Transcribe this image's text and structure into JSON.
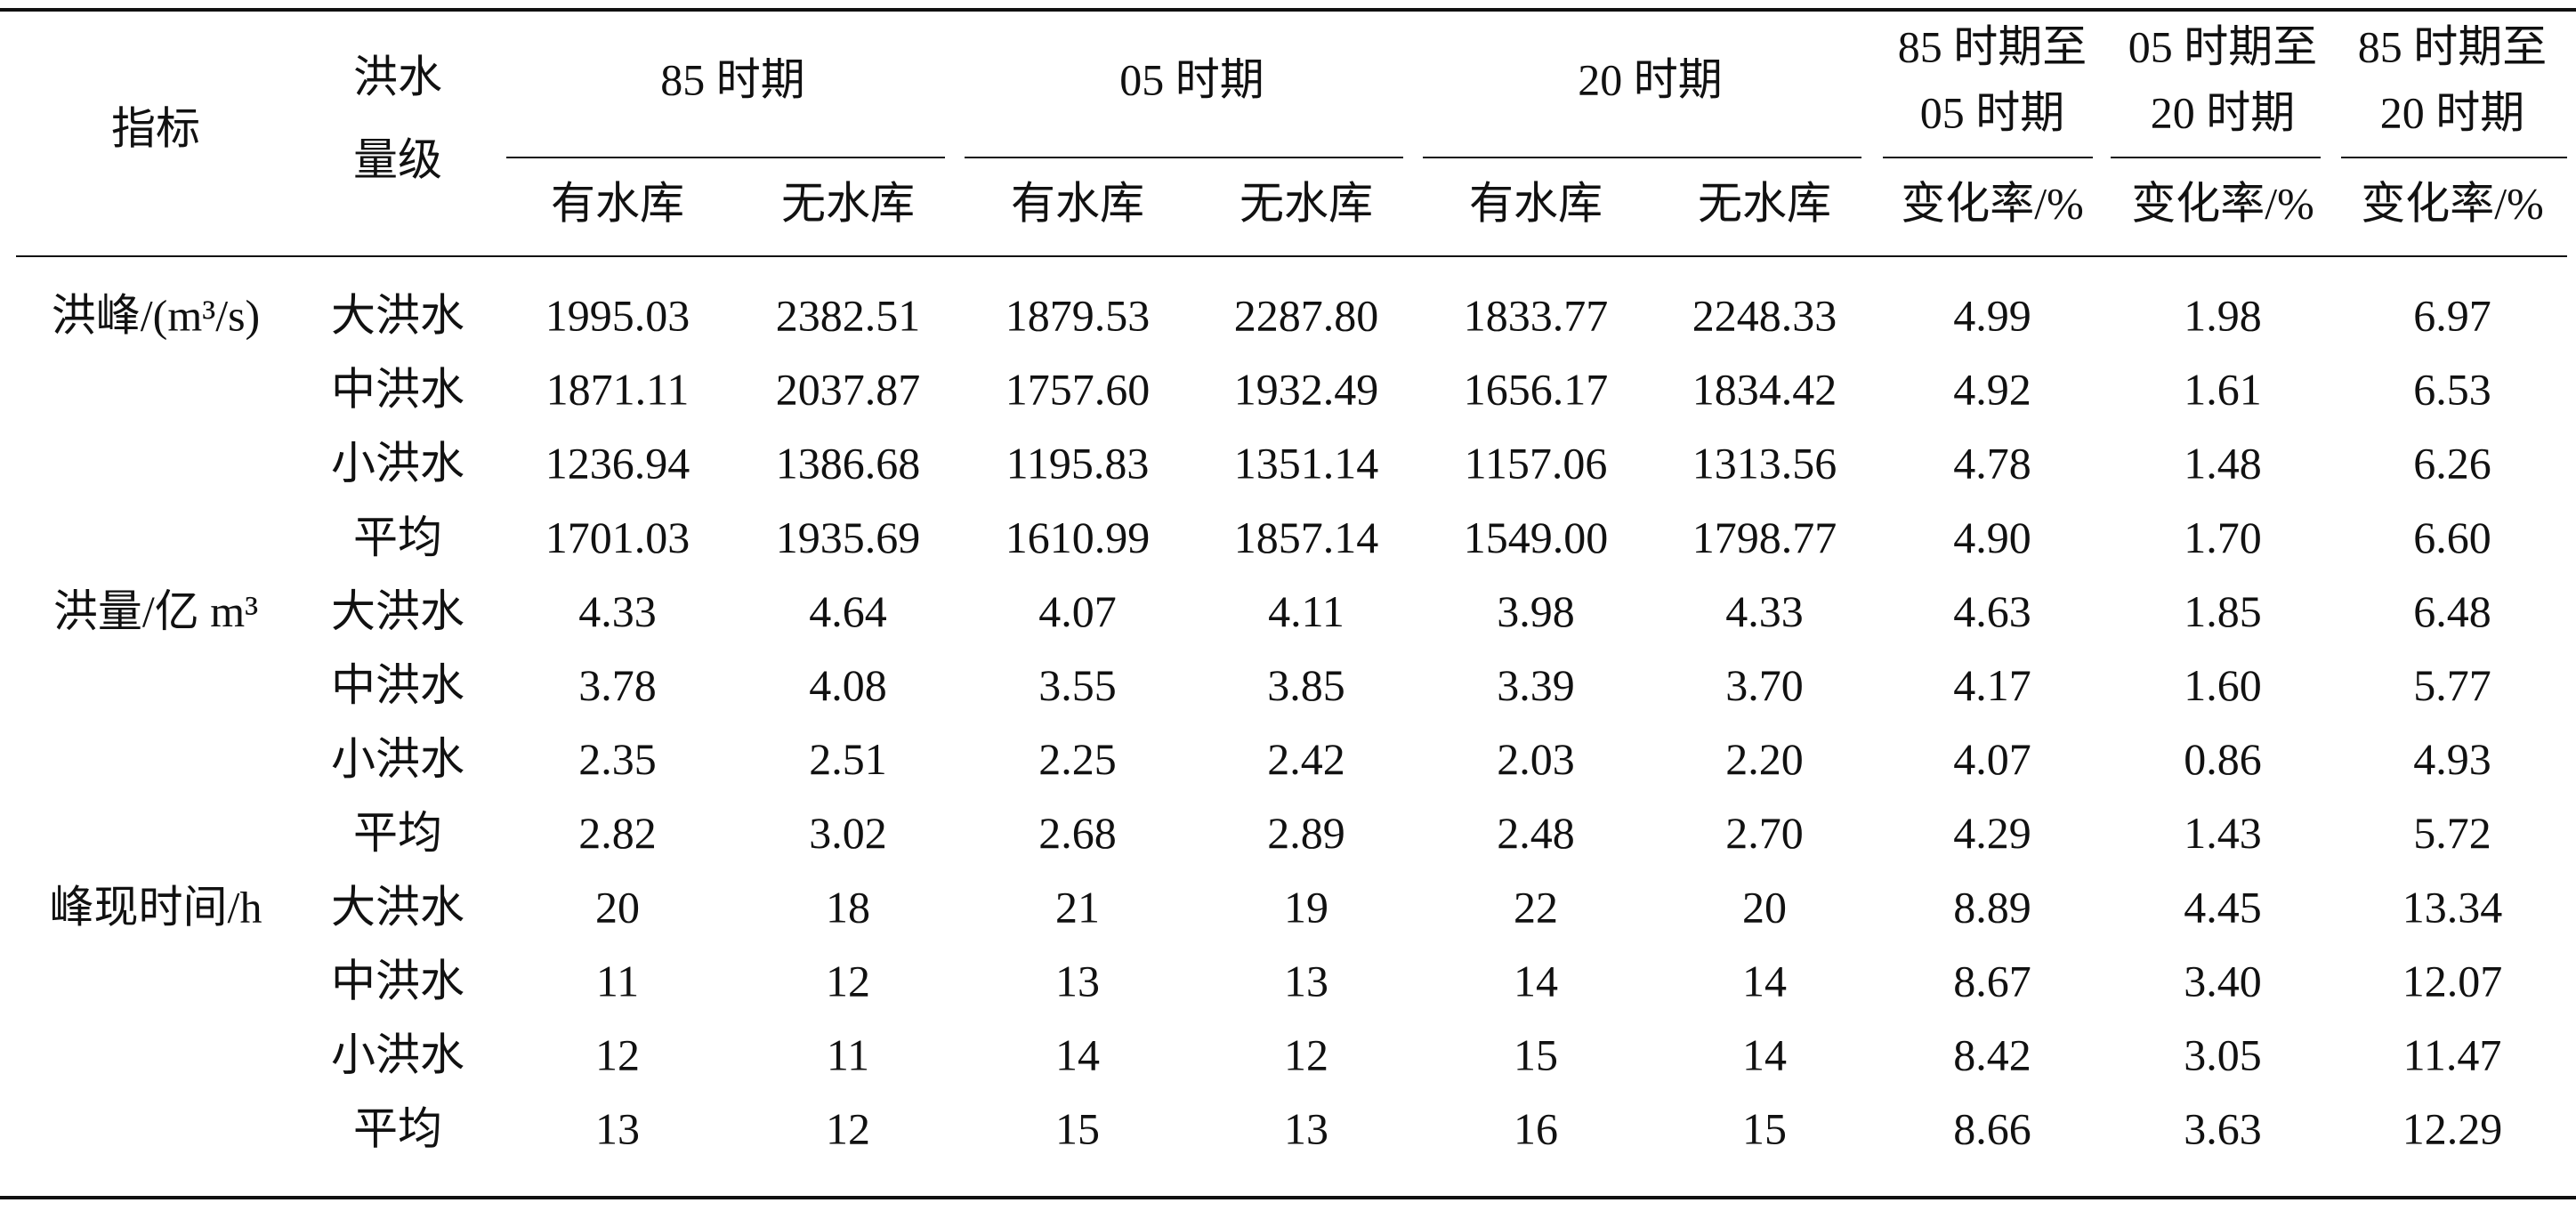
{
  "header": {
    "indicator": "指标",
    "level": [
      "洪水",
      "量级"
    ],
    "groups": [
      {
        "title": "85 时期",
        "sub": [
          "有水库",
          "无水库"
        ]
      },
      {
        "title": "05 时期",
        "sub": [
          "有水库",
          "无水库"
        ]
      },
      {
        "title": "20 时期",
        "sub": [
          "有水库",
          "无水库"
        ]
      }
    ],
    "rates": [
      {
        "title": [
          "85 时期至",
          "05 时期"
        ],
        "sub": "变化率/%"
      },
      {
        "title": [
          "05 时期至",
          "20 时期"
        ],
        "sub": "变化率/%"
      },
      {
        "title": [
          "85 时期至",
          "20 时期"
        ],
        "sub": "变化率/%"
      }
    ]
  },
  "table": {
    "sections": [
      {
        "indicator": "洪峰/(m³/s)",
        "rows": [
          {
            "level": "大洪水",
            "values": [
              "1995.03",
              "2382.51",
              "1879.53",
              "2287.80",
              "1833.77",
              "2248.33",
              "4.99",
              "1.98",
              "6.97"
            ]
          },
          {
            "level": "中洪水",
            "values": [
              "1871.11",
              "2037.87",
              "1757.60",
              "1932.49",
              "1656.17",
              "1834.42",
              "4.92",
              "1.61",
              "6.53"
            ]
          },
          {
            "level": "小洪水",
            "values": [
              "1236.94",
              "1386.68",
              "1195.83",
              "1351.14",
              "1157.06",
              "1313.56",
              "4.78",
              "1.48",
              "6.26"
            ]
          },
          {
            "level": "平均",
            "values": [
              "1701.03",
              "1935.69",
              "1610.99",
              "1857.14",
              "1549.00",
              "1798.77",
              "4.90",
              "1.70",
              "6.60"
            ]
          }
        ]
      },
      {
        "indicator": "洪量/亿 m³",
        "rows": [
          {
            "level": "大洪水",
            "values": [
              "4.33",
              "4.64",
              "4.07",
              "4.11",
              "3.98",
              "4.33",
              "4.63",
              "1.85",
              "6.48"
            ]
          },
          {
            "level": "中洪水",
            "values": [
              "3.78",
              "4.08",
              "3.55",
              "3.85",
              "3.39",
              "3.70",
              "4.17",
              "1.60",
              "5.77"
            ]
          },
          {
            "level": "小洪水",
            "values": [
              "2.35",
              "2.51",
              "2.25",
              "2.42",
              "2.03",
              "2.20",
              "4.07",
              "0.86",
              "4.93"
            ]
          },
          {
            "level": "平均",
            "values": [
              "2.82",
              "3.02",
              "2.68",
              "2.89",
              "2.48",
              "2.70",
              "4.29",
              "1.43",
              "5.72"
            ]
          }
        ]
      },
      {
        "indicator": "峰现时间/h",
        "rows": [
          {
            "level": "大洪水",
            "values": [
              "20",
              "18",
              "21",
              "19",
              "22",
              "20",
              "8.89",
              "4.45",
              "13.34"
            ]
          },
          {
            "level": "中洪水",
            "values": [
              "11",
              "12",
              "13",
              "13",
              "14",
              "14",
              "8.67",
              "3.40",
              "12.07"
            ]
          },
          {
            "level": "小洪水",
            "values": [
              "12",
              "11",
              "14",
              "12",
              "15",
              "14",
              "8.42",
              "3.05",
              "11.47"
            ]
          },
          {
            "level": "平均",
            "values": [
              "13",
              "12",
              "15",
              "13",
              "16",
              "15",
              "8.66",
              "3.63",
              "12.29"
            ]
          }
        ]
      }
    ]
  }
}
